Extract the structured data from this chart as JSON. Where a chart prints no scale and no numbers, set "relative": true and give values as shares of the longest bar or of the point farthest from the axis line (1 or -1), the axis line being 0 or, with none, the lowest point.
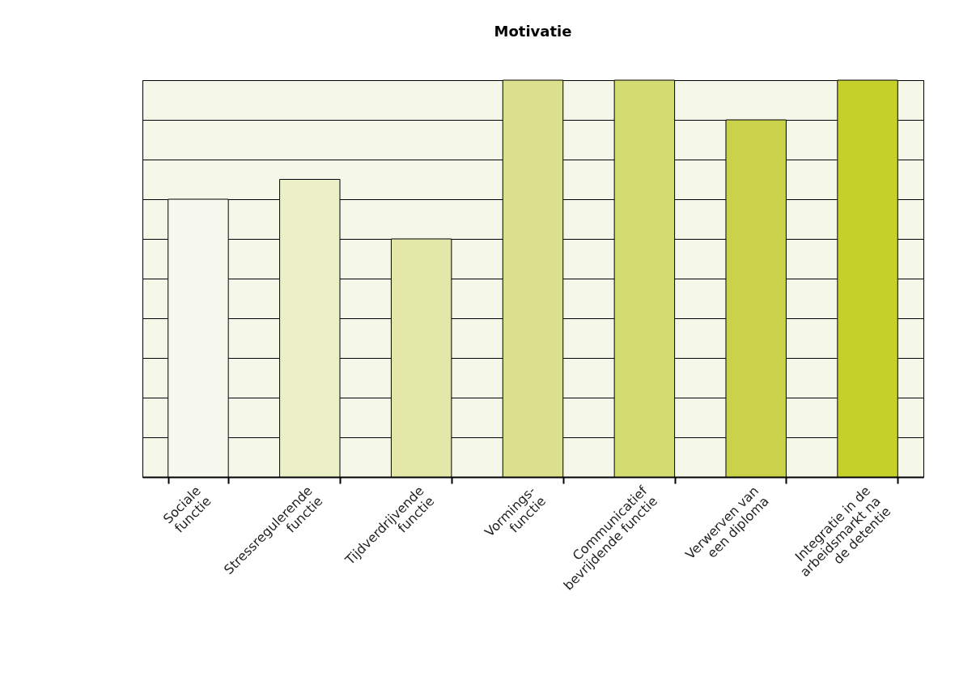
{
  "chart_data": {
    "type": "bar",
    "title": "Motivatie",
    "categories": [
      "Sociale\nfunctie",
      "Stressregulerende\nfunctie",
      "Tijdverdrijvende\nfunctie",
      "Vormings-\nfunctie",
      "Communicatief\nbevrijdende functie",
      "Verwerven van\neen diploma",
      "Integratie in de\narbeidsmarkt na\nde detentie"
    ],
    "values": [
      0.7,
      0.75,
      0.6,
      1,
      1,
      0.9,
      1
    ],
    "colors": [
      "#f8f9ee",
      "#ecf0c8",
      "#e3e8a8",
      "#dbe08e",
      "#d3dc70",
      "#c9d24a",
      "#c3d12a"
    ],
    "relative": true,
    "grid": "y"
  }
}
